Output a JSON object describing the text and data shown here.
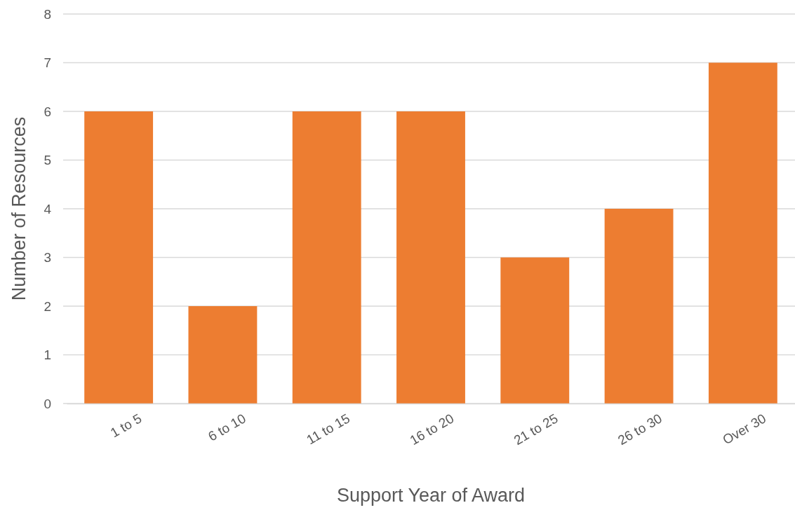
{
  "chart_data": {
    "type": "bar",
    "xlabel": "Support Year of Award",
    "ylabel": "Number of Resources",
    "categories": [
      "1 to 5",
      "6 to 10",
      "11 to 15",
      "16 to 20",
      "21 to 25",
      "26 to 30",
      "Over 30"
    ],
    "values": [
      6,
      2,
      6,
      6,
      3,
      4,
      7
    ],
    "color": "#ed7d31",
    "ylim": [
      0,
      8
    ],
    "yticks": [
      0,
      1,
      2,
      3,
      4,
      5,
      6,
      7,
      8
    ],
    "grid": "y"
  }
}
